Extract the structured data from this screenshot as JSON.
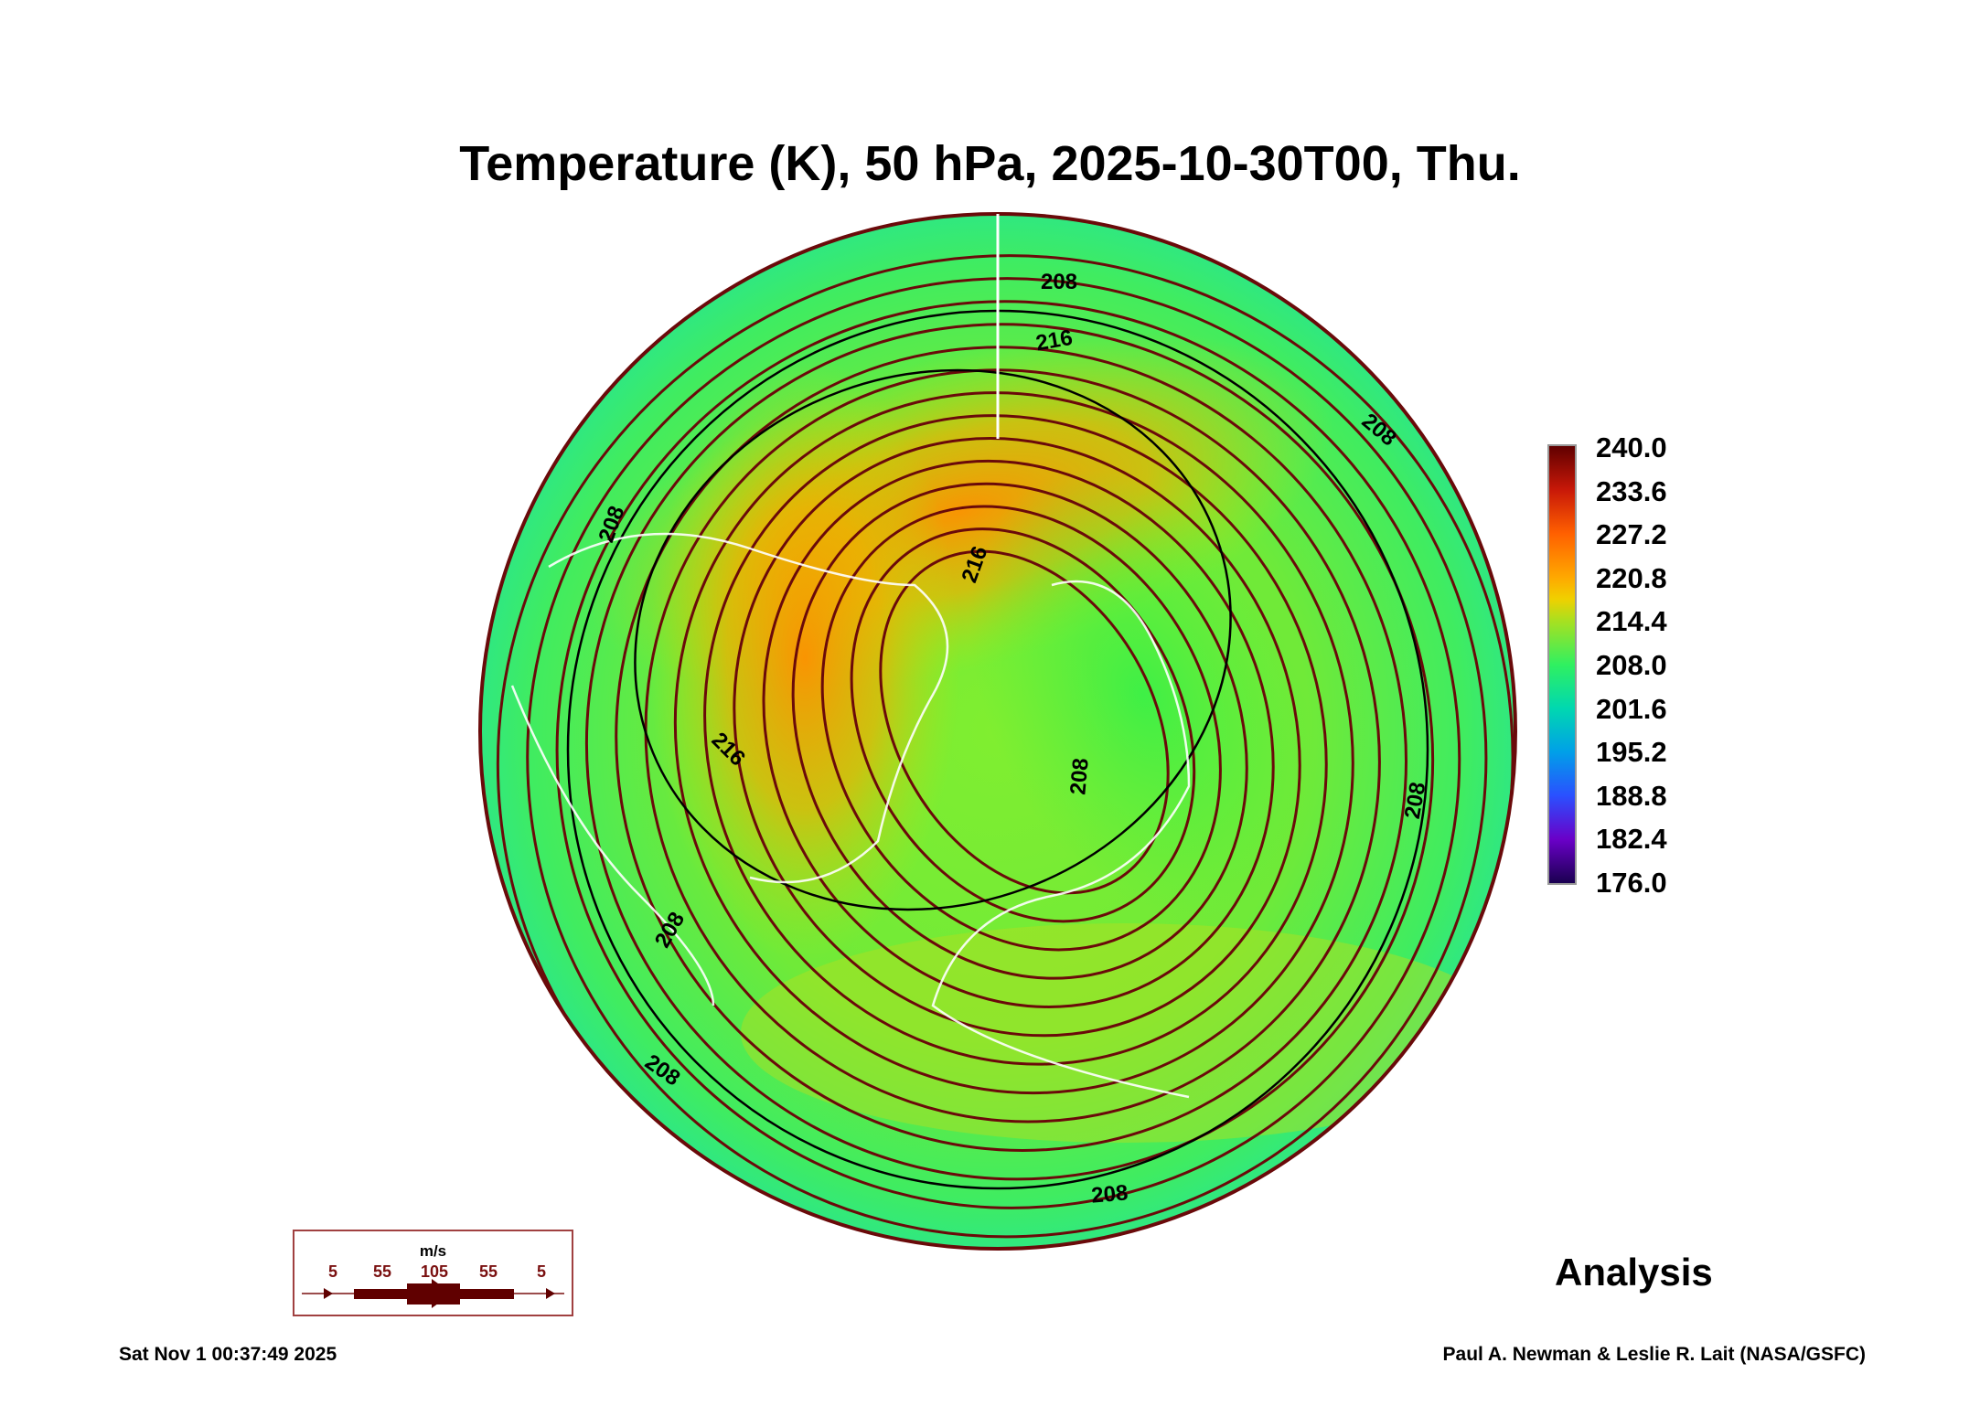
{
  "title": "Temperature (K), 50 hPa, 2025-10-30T00, Thu.",
  "colorbar": {
    "labels": [
      "240.0",
      "233.6",
      "227.2",
      "220.8",
      "214.4",
      "208.0",
      "201.6",
      "195.2",
      "188.8",
      "182.4",
      "176.0"
    ],
    "range": [
      176.0,
      240.0
    ]
  },
  "legend": {
    "units": "m/s",
    "speeds": [
      "5",
      "55",
      "105",
      "55",
      "5"
    ]
  },
  "analysis_label": "Analysis",
  "footer": {
    "timestamp": "Sat Nov  1 00:37:49 2025",
    "credit": "Paul A. Newman & Leslie R. Lait (NASA/GSFC)"
  },
  "chart_data": {
    "type": "heatmap",
    "title": "Temperature (K), 50 hPa, 2025-10-30T00, Thu.",
    "projection": "polar stereographic, Northern Hemisphere",
    "variable": "Temperature",
    "units": "K",
    "level_hPa": 50,
    "color_range": [
      176.0,
      240.0
    ],
    "contour_labels": [
      "208",
      "216",
      "216",
      "216",
      "208",
      "208",
      "208",
      "208",
      "208",
      "208",
      "208"
    ],
    "features": {
      "warm_max_K_approx": 224,
      "cold_center_K_approx": 206
    },
    "streamline_units": "m/s"
  },
  "colors": {
    "streamline": "#6a0a0a",
    "contour": "#000000",
    "coast": "#ffffff"
  }
}
